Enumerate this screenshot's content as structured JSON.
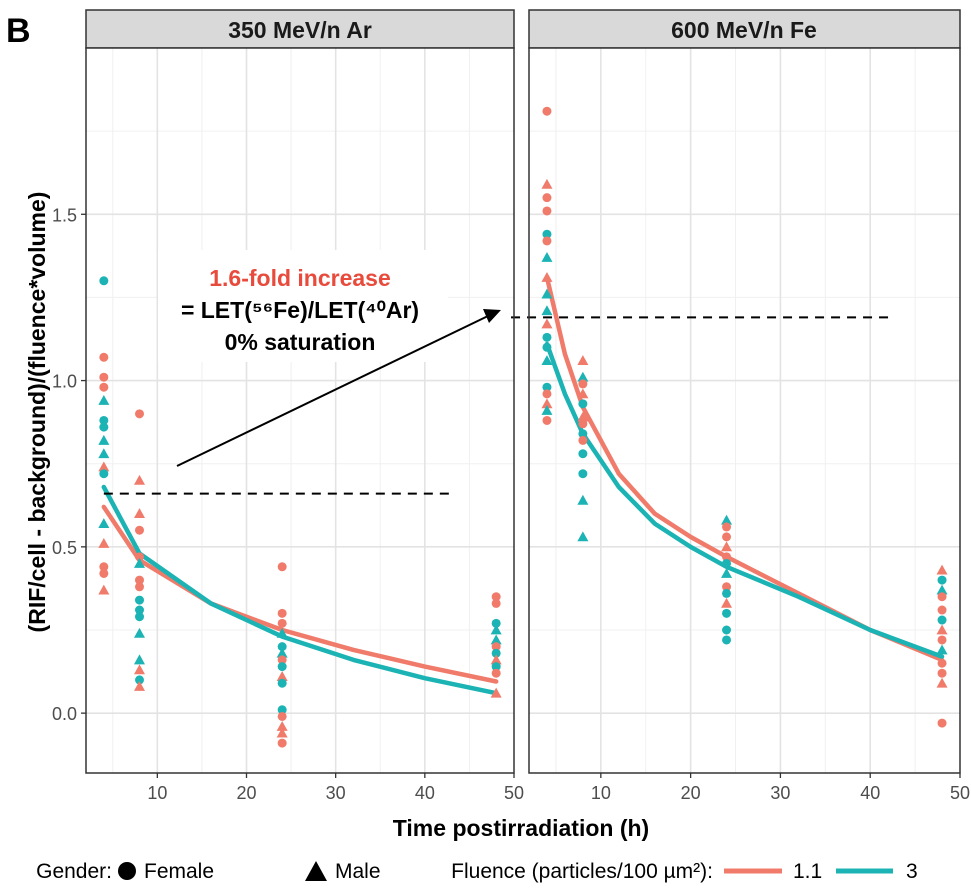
{
  "panel_label": "B",
  "ylabel": "(RIF/cell - background)/(fluence*volume)",
  "xlabel": "Time postirradiation (h)",
  "colors": {
    "fluence_1_1": "#F07B6B",
    "fluence_3": "#1CB3B4"
  },
  "annotation": {
    "line1": "1.6-fold increase",
    "line2": "= LET(⁵⁶Fe)/LET(⁴⁰Ar)",
    "line3": "0% saturation"
  },
  "legend": {
    "gender_title": "Gender:",
    "female": "Female",
    "male": "Male",
    "fluence_title": "Fluence (particles/100 µm²):",
    "f1": "1.1",
    "f2": "3"
  },
  "chart_data": [
    {
      "type": "scatter",
      "title": "350 MeV/n Ar",
      "xlim": [
        2,
        50
      ],
      "ylim": [
        -0.18,
        2.0
      ],
      "xticks": [
        10,
        20,
        30,
        40,
        50
      ],
      "yticks": [
        0.0,
        0.5,
        1.0,
        1.5
      ],
      "xlabel": "Time postirradiation (h)",
      "ylabel": "(RIF/cell - background)/(fluence*volume)",
      "reference_line": {
        "y": 0.66,
        "x_range": [
          4,
          43
        ]
      },
      "curves": [
        {
          "name": "1.1",
          "color": "#F07B6B",
          "x": [
            4,
            8,
            16,
            24,
            32,
            40,
            48
          ],
          "y": [
            0.62,
            0.46,
            0.33,
            0.25,
            0.19,
            0.14,
            0.095
          ]
        },
        {
          "name": "3",
          "color": "#1CB3B4",
          "x": [
            4,
            8,
            16,
            24,
            32,
            40,
            48
          ],
          "y": [
            0.68,
            0.48,
            0.33,
            0.23,
            0.16,
            0.105,
            0.06
          ]
        }
      ],
      "points": [
        {
          "x": 4,
          "y": 1.3,
          "shape": "circle",
          "fluence": "3"
        },
        {
          "x": 4,
          "y": 1.07,
          "shape": "circle",
          "fluence": "1.1"
        },
        {
          "x": 4,
          "y": 1.01,
          "shape": "circle",
          "fluence": "1.1"
        },
        {
          "x": 4,
          "y": 0.98,
          "shape": "circle",
          "fluence": "1.1"
        },
        {
          "x": 4,
          "y": 0.94,
          "shape": "triangle",
          "fluence": "3"
        },
        {
          "x": 4,
          "y": 0.88,
          "shape": "circle",
          "fluence": "3"
        },
        {
          "x": 4,
          "y": 0.86,
          "shape": "circle",
          "fluence": "3"
        },
        {
          "x": 4,
          "y": 0.82,
          "shape": "triangle",
          "fluence": "3"
        },
        {
          "x": 4,
          "y": 0.78,
          "shape": "triangle",
          "fluence": "3"
        },
        {
          "x": 4,
          "y": 0.74,
          "shape": "triangle",
          "fluence": "1.1"
        },
        {
          "x": 4,
          "y": 0.72,
          "shape": "circle",
          "fluence": "3"
        },
        {
          "x": 4,
          "y": 0.57,
          "shape": "triangle",
          "fluence": "3"
        },
        {
          "x": 4,
          "y": 0.51,
          "shape": "triangle",
          "fluence": "1.1"
        },
        {
          "x": 4,
          "y": 0.44,
          "shape": "circle",
          "fluence": "1.1"
        },
        {
          "x": 4,
          "y": 0.42,
          "shape": "circle",
          "fluence": "1.1"
        },
        {
          "x": 4,
          "y": 0.37,
          "shape": "triangle",
          "fluence": "1.1"
        },
        {
          "x": 8,
          "y": 0.9,
          "shape": "circle",
          "fluence": "1.1"
        },
        {
          "x": 8,
          "y": 0.7,
          "shape": "triangle",
          "fluence": "1.1"
        },
        {
          "x": 8,
          "y": 0.6,
          "shape": "triangle",
          "fluence": "1.1"
        },
        {
          "x": 8,
          "y": 0.55,
          "shape": "circle",
          "fluence": "1.1"
        },
        {
          "x": 8,
          "y": 0.47,
          "shape": "circle",
          "fluence": "1.1"
        },
        {
          "x": 8,
          "y": 0.45,
          "shape": "triangle",
          "fluence": "3"
        },
        {
          "x": 8,
          "y": 0.4,
          "shape": "circle",
          "fluence": "1.1"
        },
        {
          "x": 8,
          "y": 0.38,
          "shape": "circle",
          "fluence": "1.1"
        },
        {
          "x": 8,
          "y": 0.34,
          "shape": "circle",
          "fluence": "3"
        },
        {
          "x": 8,
          "y": 0.31,
          "shape": "circle",
          "fluence": "3"
        },
        {
          "x": 8,
          "y": 0.29,
          "shape": "circle",
          "fluence": "3"
        },
        {
          "x": 8,
          "y": 0.24,
          "shape": "triangle",
          "fluence": "3"
        },
        {
          "x": 8,
          "y": 0.16,
          "shape": "triangle",
          "fluence": "3"
        },
        {
          "x": 8,
          "y": 0.13,
          "shape": "triangle",
          "fluence": "1.1"
        },
        {
          "x": 8,
          "y": 0.1,
          "shape": "circle",
          "fluence": "3"
        },
        {
          "x": 8,
          "y": 0.08,
          "shape": "triangle",
          "fluence": "1.1"
        },
        {
          "x": 24,
          "y": 0.44,
          "shape": "circle",
          "fluence": "1.1"
        },
        {
          "x": 24,
          "y": 0.3,
          "shape": "circle",
          "fluence": "1.1"
        },
        {
          "x": 24,
          "y": 0.27,
          "shape": "circle",
          "fluence": "1.1"
        },
        {
          "x": 24,
          "y": 0.24,
          "shape": "triangle",
          "fluence": "3"
        },
        {
          "x": 24,
          "y": 0.2,
          "shape": "circle",
          "fluence": "3"
        },
        {
          "x": 24,
          "y": 0.18,
          "shape": "triangle",
          "fluence": "3"
        },
        {
          "x": 24,
          "y": 0.16,
          "shape": "circle",
          "fluence": "1.1"
        },
        {
          "x": 24,
          "y": 0.14,
          "shape": "circle",
          "fluence": "3"
        },
        {
          "x": 24,
          "y": 0.11,
          "shape": "triangle",
          "fluence": "1.1"
        },
        {
          "x": 24,
          "y": 0.09,
          "shape": "circle",
          "fluence": "3"
        },
        {
          "x": 24,
          "y": 0.01,
          "shape": "circle",
          "fluence": "3"
        },
        {
          "x": 24,
          "y": -0.01,
          "shape": "circle",
          "fluence": "1.1"
        },
        {
          "x": 24,
          "y": -0.04,
          "shape": "triangle",
          "fluence": "1.1"
        },
        {
          "x": 24,
          "y": -0.06,
          "shape": "triangle",
          "fluence": "1.1"
        },
        {
          "x": 24,
          "y": -0.09,
          "shape": "circle",
          "fluence": "1.1"
        },
        {
          "x": 48,
          "y": 0.35,
          "shape": "circle",
          "fluence": "1.1"
        },
        {
          "x": 48,
          "y": 0.33,
          "shape": "circle",
          "fluence": "1.1"
        },
        {
          "x": 48,
          "y": 0.27,
          "shape": "circle",
          "fluence": "3"
        },
        {
          "x": 48,
          "y": 0.25,
          "shape": "triangle",
          "fluence": "3"
        },
        {
          "x": 48,
          "y": 0.22,
          "shape": "triangle",
          "fluence": "3"
        },
        {
          "x": 48,
          "y": 0.2,
          "shape": "circle",
          "fluence": "1.1"
        },
        {
          "x": 48,
          "y": 0.18,
          "shape": "circle",
          "fluence": "3"
        },
        {
          "x": 48,
          "y": 0.16,
          "shape": "triangle",
          "fluence": "1.1"
        },
        {
          "x": 48,
          "y": 0.14,
          "shape": "circle",
          "fluence": "3"
        },
        {
          "x": 48,
          "y": 0.12,
          "shape": "circle",
          "fluence": "1.1"
        },
        {
          "x": 48,
          "y": 0.06,
          "shape": "triangle",
          "fluence": "1.1"
        }
      ]
    },
    {
      "type": "scatter",
      "title": "600 MeV/n Fe",
      "xlim": [
        2,
        50
      ],
      "ylim": [
        -0.18,
        2.0
      ],
      "xticks": [
        10,
        20,
        30,
        40,
        50
      ],
      "yticks": [
        0.0,
        0.5,
        1.0,
        1.5
      ],
      "xlabel": "Time postirradiation (h)",
      "reference_line": {
        "y": 1.19,
        "x_range": [
          0,
          42
        ]
      },
      "curves": [
        {
          "name": "1.1",
          "color": "#F07B6B",
          "x": [
            4,
            6,
            8,
            12,
            16,
            20,
            24,
            32,
            40,
            48
          ],
          "y": [
            1.31,
            1.08,
            0.92,
            0.72,
            0.6,
            0.53,
            0.47,
            0.36,
            0.25,
            0.16
          ]
        },
        {
          "name": "3",
          "color": "#1CB3B4",
          "x": [
            4,
            6,
            8,
            12,
            16,
            20,
            24,
            32,
            40,
            48
          ],
          "y": [
            1.11,
            0.96,
            0.84,
            0.68,
            0.57,
            0.5,
            0.44,
            0.35,
            0.25,
            0.17
          ]
        }
      ],
      "points": [
        {
          "x": 4,
          "y": 1.81,
          "shape": "circle",
          "fluence": "1.1"
        },
        {
          "x": 4,
          "y": 1.59,
          "shape": "triangle",
          "fluence": "1.1"
        },
        {
          "x": 4,
          "y": 1.55,
          "shape": "circle",
          "fluence": "1.1"
        },
        {
          "x": 4,
          "y": 1.51,
          "shape": "circle",
          "fluence": "1.1"
        },
        {
          "x": 4,
          "y": 1.44,
          "shape": "circle",
          "fluence": "3"
        },
        {
          "x": 4,
          "y": 1.42,
          "shape": "circle",
          "fluence": "1.1"
        },
        {
          "x": 4,
          "y": 1.37,
          "shape": "triangle",
          "fluence": "3"
        },
        {
          "x": 4,
          "y": 1.31,
          "shape": "triangle",
          "fluence": "1.1"
        },
        {
          "x": 4,
          "y": 1.26,
          "shape": "triangle",
          "fluence": "3"
        },
        {
          "x": 4,
          "y": 1.21,
          "shape": "triangle",
          "fluence": "3"
        },
        {
          "x": 4,
          "y": 1.17,
          "shape": "triangle",
          "fluence": "1.1"
        },
        {
          "x": 4,
          "y": 1.13,
          "shape": "circle",
          "fluence": "3"
        },
        {
          "x": 4,
          "y": 1.1,
          "shape": "circle",
          "fluence": "3"
        },
        {
          "x": 4,
          "y": 1.06,
          "shape": "triangle",
          "fluence": "3"
        },
        {
          "x": 4,
          "y": 0.98,
          "shape": "circle",
          "fluence": "3"
        },
        {
          "x": 4,
          "y": 0.96,
          "shape": "circle",
          "fluence": "1.1"
        },
        {
          "x": 4,
          "y": 0.93,
          "shape": "triangle",
          "fluence": "1.1"
        },
        {
          "x": 4,
          "y": 0.91,
          "shape": "triangle",
          "fluence": "3"
        },
        {
          "x": 4,
          "y": 0.88,
          "shape": "circle",
          "fluence": "1.1"
        },
        {
          "x": 8,
          "y": 1.06,
          "shape": "triangle",
          "fluence": "1.1"
        },
        {
          "x": 8,
          "y": 1.01,
          "shape": "triangle",
          "fluence": "3"
        },
        {
          "x": 8,
          "y": 0.99,
          "shape": "circle",
          "fluence": "1.1"
        },
        {
          "x": 8,
          "y": 0.96,
          "shape": "triangle",
          "fluence": "1.1"
        },
        {
          "x": 8,
          "y": 0.93,
          "shape": "circle",
          "fluence": "3"
        },
        {
          "x": 8,
          "y": 0.89,
          "shape": "triangle",
          "fluence": "1.1"
        },
        {
          "x": 8,
          "y": 0.87,
          "shape": "circle",
          "fluence": "1.1"
        },
        {
          "x": 8,
          "y": 0.84,
          "shape": "circle",
          "fluence": "3"
        },
        {
          "x": 8,
          "y": 0.82,
          "shape": "circle",
          "fluence": "1.1"
        },
        {
          "x": 8,
          "y": 0.78,
          "shape": "circle",
          "fluence": "3"
        },
        {
          "x": 8,
          "y": 0.72,
          "shape": "circle",
          "fluence": "3"
        },
        {
          "x": 8,
          "y": 0.64,
          "shape": "triangle",
          "fluence": "3"
        },
        {
          "x": 8,
          "y": 0.53,
          "shape": "triangle",
          "fluence": "3"
        },
        {
          "x": 24,
          "y": 0.58,
          "shape": "triangle",
          "fluence": "3"
        },
        {
          "x": 24,
          "y": 0.56,
          "shape": "circle",
          "fluence": "1.1"
        },
        {
          "x": 24,
          "y": 0.53,
          "shape": "circle",
          "fluence": "1.1"
        },
        {
          "x": 24,
          "y": 0.5,
          "shape": "triangle",
          "fluence": "1.1"
        },
        {
          "x": 24,
          "y": 0.47,
          "shape": "circle",
          "fluence": "1.1"
        },
        {
          "x": 24,
          "y": 0.45,
          "shape": "circle",
          "fluence": "3"
        },
        {
          "x": 24,
          "y": 0.42,
          "shape": "triangle",
          "fluence": "3"
        },
        {
          "x": 24,
          "y": 0.38,
          "shape": "circle",
          "fluence": "1.1"
        },
        {
          "x": 24,
          "y": 0.36,
          "shape": "circle",
          "fluence": "3"
        },
        {
          "x": 24,
          "y": 0.33,
          "shape": "triangle",
          "fluence": "1.1"
        },
        {
          "x": 24,
          "y": 0.3,
          "shape": "circle",
          "fluence": "3"
        },
        {
          "x": 24,
          "y": 0.25,
          "shape": "circle",
          "fluence": "3"
        },
        {
          "x": 24,
          "y": 0.22,
          "shape": "circle",
          "fluence": "3"
        },
        {
          "x": 48,
          "y": 0.43,
          "shape": "triangle",
          "fluence": "1.1"
        },
        {
          "x": 48,
          "y": 0.4,
          "shape": "circle",
          "fluence": "3"
        },
        {
          "x": 48,
          "y": 0.37,
          "shape": "triangle",
          "fluence": "3"
        },
        {
          "x": 48,
          "y": 0.35,
          "shape": "circle",
          "fluence": "1.1"
        },
        {
          "x": 48,
          "y": 0.31,
          "shape": "circle",
          "fluence": "1.1"
        },
        {
          "x": 48,
          "y": 0.28,
          "shape": "circle",
          "fluence": "3"
        },
        {
          "x": 48,
          "y": 0.25,
          "shape": "triangle",
          "fluence": "1.1"
        },
        {
          "x": 48,
          "y": 0.22,
          "shape": "circle",
          "fluence": "1.1"
        },
        {
          "x": 48,
          "y": 0.19,
          "shape": "triangle",
          "fluence": "3"
        },
        {
          "x": 48,
          "y": 0.15,
          "shape": "circle",
          "fluence": "1.1"
        },
        {
          "x": 48,
          "y": 0.12,
          "shape": "circle",
          "fluence": "1.1"
        },
        {
          "x": 48,
          "y": 0.09,
          "shape": "triangle",
          "fluence": "1.1"
        },
        {
          "x": 48,
          "y": -0.03,
          "shape": "circle",
          "fluence": "1.1"
        }
      ]
    }
  ]
}
